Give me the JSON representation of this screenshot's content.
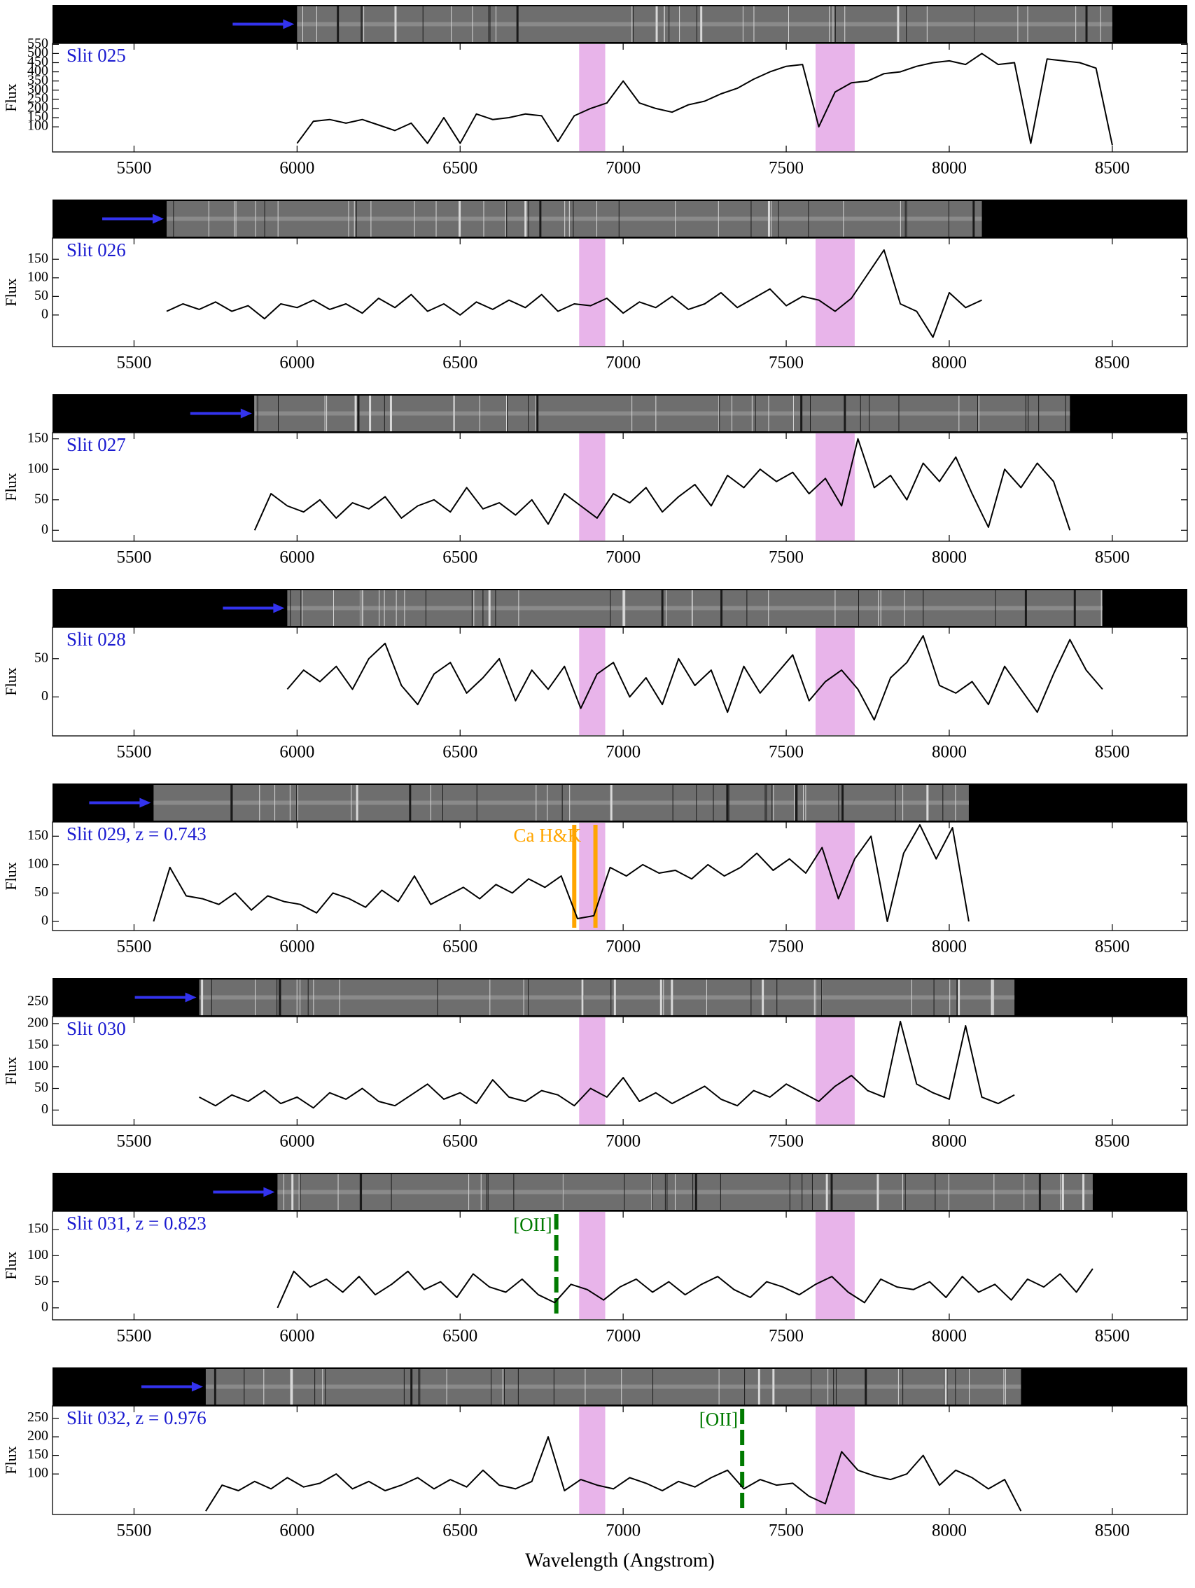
{
  "chart_data": [
    {
      "type": "line",
      "title": "Slit 025",
      "ylabel": "Flux",
      "color": "#000000",
      "title_color": "#1a1ad0",
      "band_color": "#e8b4ea",
      "x": [
        6000,
        6050,
        6100,
        6150,
        6200,
        6250,
        6300,
        6350,
        6400,
        6450,
        6500,
        6550,
        6600,
        6650,
        6700,
        6750,
        6800,
        6850,
        6900,
        6950,
        7000,
        7050,
        7100,
        7150,
        7200,
        7250,
        7300,
        7350,
        7400,
        7450,
        7500,
        7550,
        7600,
        7650,
        7700,
        7750,
        7800,
        7850,
        7900,
        7950,
        8000,
        8050,
        8100,
        8150,
        8200,
        8250,
        8300,
        8350,
        8400,
        8450,
        8500
      ],
      "values": [
        10,
        130,
        140,
        120,
        140,
        110,
        80,
        120,
        10,
        150,
        10,
        170,
        140,
        150,
        170,
        160,
        20,
        160,
        200,
        230,
        350,
        230,
        200,
        180,
        220,
        240,
        280,
        310,
        360,
        400,
        430,
        440,
        100,
        290,
        340,
        350,
        390,
        400,
        430,
        450,
        460,
        440,
        500,
        440,
        450,
        10,
        470,
        460,
        450,
        420,
        0
      ],
      "xlim": [
        5250,
        8730
      ],
      "xticks": [
        5500,
        6000,
        6500,
        7000,
        7500,
        8000,
        8500
      ],
      "ylim": [
        -37,
        555
      ],
      "yticks": [
        100,
        150,
        200,
        250,
        300,
        350,
        400,
        450,
        500,
        550
      ],
      "bands": [
        [
          6865,
          6945
        ],
        [
          7590,
          7710
        ]
      ]
    },
    {
      "type": "line",
      "title": "Slit 026",
      "ylabel": "Flux",
      "color": "#000000",
      "title_color": "#1a1ad0",
      "band_color": "#e8b4ea",
      "x": [
        5600,
        5650,
        5700,
        5750,
        5800,
        5850,
        5900,
        5950,
        6000,
        6050,
        6100,
        6150,
        6200,
        6250,
        6300,
        6350,
        6400,
        6450,
        6500,
        6550,
        6600,
        6650,
        6700,
        6750,
        6800,
        6850,
        6900,
        6950,
        7000,
        7050,
        7100,
        7150,
        7200,
        7250,
        7300,
        7350,
        7400,
        7450,
        7500,
        7550,
        7600,
        7650,
        7700,
        7750,
        7800,
        7850,
        7900,
        7950,
        8000,
        8050,
        8100
      ],
      "values": [
        10,
        30,
        15,
        35,
        10,
        25,
        -10,
        30,
        20,
        40,
        15,
        30,
        5,
        45,
        20,
        55,
        10,
        30,
        0,
        35,
        15,
        40,
        20,
        55,
        10,
        30,
        25,
        45,
        5,
        35,
        20,
        50,
        15,
        30,
        60,
        20,
        45,
        70,
        25,
        50,
        40,
        10,
        45,
        110,
        175,
        30,
        10,
        -60,
        60,
        20,
        40
      ],
      "xlim": [
        5250,
        8730
      ],
      "xticks": [
        5500,
        6000,
        6500,
        7000,
        7500,
        8000,
        8500
      ],
      "ylim": [
        -85,
        207
      ],
      "yticks": [
        0,
        50,
        100,
        150
      ],
      "bands": [
        [
          6865,
          6945
        ],
        [
          7590,
          7710
        ]
      ]
    },
    {
      "type": "line",
      "title": "Slit 027",
      "ylabel": "Flux",
      "color": "#000000",
      "title_color": "#1a1ad0",
      "band_color": "#e8b4ea",
      "x": [
        5870,
        5920,
        5970,
        6020,
        6070,
        6120,
        6170,
        6220,
        6270,
        6320,
        6370,
        6420,
        6470,
        6520,
        6570,
        6620,
        6670,
        6720,
        6770,
        6820,
        6870,
        6920,
        6970,
        7020,
        7070,
        7120,
        7170,
        7220,
        7270,
        7320,
        7370,
        7420,
        7470,
        7520,
        7570,
        7620,
        7670,
        7720,
        7770,
        7820,
        7870,
        7920,
        7970,
        8020,
        8070,
        8120,
        8170,
        8220,
        8270,
        8320,
        8370
      ],
      "values": [
        0,
        60,
        40,
        30,
        50,
        20,
        45,
        35,
        55,
        20,
        40,
        50,
        30,
        70,
        35,
        45,
        25,
        50,
        10,
        60,
        40,
        20,
        60,
        45,
        70,
        30,
        55,
        75,
        40,
        90,
        70,
        100,
        80,
        95,
        60,
        85,
        40,
        150,
        70,
        90,
        50,
        110,
        80,
        120,
        60,
        5,
        100,
        70,
        110,
        80,
        0
      ],
      "xlim": [
        5250,
        8730
      ],
      "xticks": [
        5500,
        6000,
        6500,
        7000,
        7500,
        8000,
        8500
      ],
      "ylim": [
        -18,
        160
      ],
      "yticks": [
        0,
        50,
        100,
        150
      ],
      "bands": [
        [
          6865,
          6945
        ],
        [
          7590,
          7710
        ]
      ]
    },
    {
      "type": "line",
      "title": "Slit 028",
      "ylabel": "Flux",
      "color": "#000000",
      "title_color": "#1a1ad0",
      "band_color": "#e8b4ea",
      "x": [
        5970,
        6020,
        6070,
        6120,
        6170,
        6220,
        6270,
        6320,
        6370,
        6420,
        6470,
        6520,
        6570,
        6620,
        6670,
        6720,
        6770,
        6820,
        6870,
        6920,
        6970,
        7020,
        7070,
        7120,
        7170,
        7220,
        7270,
        7320,
        7370,
        7420,
        7470,
        7520,
        7570,
        7620,
        7670,
        7720,
        7770,
        7820,
        7870,
        7920,
        7970,
        8020,
        8070,
        8120,
        8170,
        8220,
        8270,
        8320,
        8370,
        8420,
        8470
      ],
      "values": [
        10,
        35,
        20,
        40,
        10,
        50,
        70,
        15,
        -10,
        30,
        45,
        5,
        25,
        50,
        -5,
        35,
        10,
        40,
        -15,
        30,
        45,
        0,
        25,
        -10,
        50,
        15,
        35,
        -20,
        40,
        5,
        30,
        55,
        -5,
        20,
        35,
        10,
        -30,
        25,
        45,
        80,
        15,
        5,
        20,
        -10,
        40,
        10,
        -20,
        30,
        75,
        35,
        10
      ],
      "xlim": [
        5250,
        8730
      ],
      "xticks": [
        5500,
        6000,
        6500,
        7000,
        7500,
        8000,
        8500
      ],
      "ylim": [
        -51,
        91
      ],
      "yticks": [
        0,
        50
      ],
      "bands": [
        [
          6865,
          6945
        ],
        [
          7590,
          7710
        ]
      ]
    },
    {
      "type": "line",
      "title": "Slit 029, z = 0.743",
      "ylabel": "Flux",
      "color": "#000000",
      "title_color": "#1a1ad0",
      "band_color": "#e8b4ea",
      "x": [
        5560,
        5610,
        5660,
        5710,
        5760,
        5810,
        5860,
        5910,
        5960,
        6010,
        6060,
        6110,
        6160,
        6210,
        6260,
        6310,
        6360,
        6410,
        6460,
        6510,
        6560,
        6610,
        6660,
        6710,
        6760,
        6810,
        6860,
        6910,
        6960,
        7010,
        7060,
        7110,
        7160,
        7210,
        7260,
        7310,
        7360,
        7410,
        7460,
        7510,
        7560,
        7610,
        7660,
        7710,
        7760,
        7810,
        7860,
        7910,
        7960,
        8010,
        8060
      ],
      "values": [
        0,
        95,
        45,
        40,
        30,
        50,
        20,
        45,
        35,
        30,
        15,
        50,
        40,
        25,
        55,
        35,
        80,
        30,
        45,
        60,
        40,
        65,
        50,
        75,
        60,
        80,
        5,
        10,
        95,
        80,
        100,
        85,
        90,
        75,
        100,
        80,
        95,
        120,
        90,
        110,
        85,
        130,
        40,
        110,
        150,
        0,
        120,
        170,
        110,
        165,
        0
      ],
      "xlim": [
        5250,
        8730
      ],
      "xticks": [
        5500,
        6000,
        6500,
        7000,
        7500,
        8000,
        8500
      ],
      "ylim": [
        -16,
        175
      ],
      "yticks": [
        0,
        50,
        100,
        150
      ],
      "bands": [
        [
          6865,
          6945
        ],
        [
          7590,
          7710
        ]
      ],
      "markers": [
        {
          "x": 6850,
          "color": "#ffa500",
          "style": "solid"
        },
        {
          "x": 6915,
          "color": "#ffa500",
          "style": "solid"
        }
      ],
      "marker_label": "Ca H&K"
    },
    {
      "type": "line",
      "title": "Slit 030",
      "ylabel": "Flux",
      "color": "#000000",
      "title_color": "#1a1ad0",
      "band_color": "#e8b4ea",
      "x": [
        5700,
        5750,
        5800,
        5850,
        5900,
        5950,
        6000,
        6050,
        6100,
        6150,
        6200,
        6250,
        6300,
        6350,
        6400,
        6450,
        6500,
        6550,
        6600,
        6650,
        6700,
        6750,
        6800,
        6850,
        6900,
        6950,
        7000,
        7050,
        7100,
        7150,
        7200,
        7250,
        7300,
        7350,
        7400,
        7450,
        7500,
        7550,
        7600,
        7650,
        7700,
        7750,
        7800,
        7850,
        7900,
        7950,
        8000,
        8050,
        8100,
        8150,
        8200
      ],
      "values": [
        30,
        10,
        35,
        20,
        45,
        15,
        30,
        5,
        40,
        25,
        50,
        20,
        10,
        35,
        60,
        25,
        40,
        15,
        70,
        30,
        20,
        45,
        35,
        10,
        50,
        30,
        75,
        20,
        40,
        15,
        35,
        55,
        25,
        10,
        45,
        30,
        60,
        40,
        20,
        55,
        80,
        45,
        30,
        205,
        60,
        40,
        25,
        195,
        30,
        15,
        35
      ],
      "xlim": [
        5250,
        8730
      ],
      "xticks": [
        5500,
        6000,
        6500,
        7000,
        7500,
        8000,
        8500
      ],
      "ylim": [
        -35,
        216
      ],
      "yticks": [
        0,
        50,
        100,
        150,
        200,
        250
      ],
      "bands": [
        [
          6865,
          6945
        ],
        [
          7590,
          7710
        ]
      ]
    },
    {
      "type": "line",
      "title": "Slit 031, z = 0.823",
      "ylabel": "Flux",
      "color": "#000000",
      "title_color": "#1a1ad0",
      "band_color": "#e8b4ea",
      "x": [
        5940,
        5990,
        6040,
        6090,
        6140,
        6190,
        6240,
        6290,
        6340,
        6390,
        6440,
        6490,
        6540,
        6590,
        6640,
        6690,
        6740,
        6790,
        6840,
        6890,
        6940,
        6990,
        7040,
        7090,
        7140,
        7190,
        7240,
        7290,
        7340,
        7390,
        7440,
        7490,
        7540,
        7590,
        7640,
        7690,
        7740,
        7790,
        7840,
        7890,
        7940,
        7990,
        8040,
        8090,
        8140,
        8190,
        8240,
        8290,
        8340,
        8390,
        8440
      ],
      "values": [
        0,
        70,
        40,
        55,
        30,
        60,
        25,
        45,
        70,
        35,
        50,
        20,
        65,
        40,
        30,
        55,
        25,
        10,
        45,
        35,
        15,
        40,
        55,
        30,
        50,
        25,
        45,
        60,
        35,
        20,
        50,
        40,
        25,
        45,
        60,
        30,
        10,
        55,
        40,
        35,
        50,
        20,
        60,
        30,
        45,
        15,
        55,
        40,
        65,
        30,
        75
      ],
      "xlim": [
        5250,
        8730
      ],
      "xticks": [
        5500,
        6000,
        6500,
        7000,
        7500,
        8000,
        8500
      ],
      "ylim": [
        -23,
        185
      ],
      "yticks": [
        0,
        50,
        100,
        150
      ],
      "bands": [
        [
          6865,
          6945
        ],
        [
          7590,
          7710
        ]
      ],
      "markers": [
        {
          "x": 6795,
          "color": "#007a00",
          "style": "dashed"
        }
      ],
      "marker_label": "[OII]"
    },
    {
      "type": "line",
      "title": "Slit 032, z = 0.976",
      "ylabel": "Flux",
      "xlabel": "Wavelength (Angstrom)",
      "color": "#000000",
      "title_color": "#1a1ad0",
      "band_color": "#e8b4ea",
      "x": [
        5720,
        5770,
        5820,
        5870,
        5920,
        5970,
        6020,
        6070,
        6120,
        6170,
        6220,
        6270,
        6320,
        6370,
        6420,
        6470,
        6520,
        6570,
        6620,
        6670,
        6720,
        6770,
        6820,
        6870,
        6920,
        6970,
        7020,
        7070,
        7120,
        7170,
        7220,
        7270,
        7320,
        7370,
        7420,
        7470,
        7520,
        7570,
        7620,
        7670,
        7720,
        7770,
        7820,
        7870,
        7920,
        7970,
        8020,
        8070,
        8120,
        8170,
        8220
      ],
      "values": [
        0,
        70,
        55,
        80,
        60,
        90,
        65,
        75,
        100,
        60,
        80,
        55,
        70,
        90,
        60,
        85,
        65,
        110,
        70,
        60,
        80,
        200,
        55,
        85,
        70,
        60,
        90,
        75,
        55,
        80,
        65,
        90,
        110,
        60,
        85,
        70,
        75,
        40,
        20,
        160,
        110,
        95,
        85,
        100,
        150,
        70,
        110,
        90,
        60,
        85,
        0
      ],
      "xlim": [
        5250,
        8730
      ],
      "xticks": [
        5500,
        6000,
        6500,
        7000,
        7500,
        8000,
        8500
      ],
      "ylim": [
        -9,
        283
      ],
      "yticks": [
        100,
        150,
        200,
        250
      ],
      "bands": [
        [
          6865,
          6945
        ],
        [
          7590,
          7710
        ]
      ],
      "markers": [
        {
          "x": 7365,
          "color": "#007a00",
          "style": "dashed"
        }
      ],
      "marker_label": "[OII]"
    }
  ]
}
